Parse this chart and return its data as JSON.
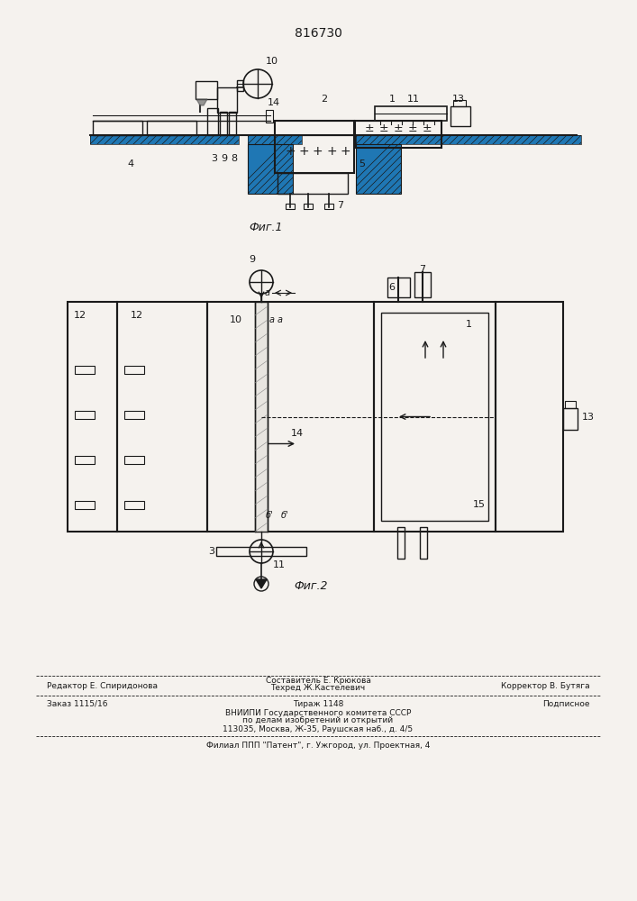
{
  "patent_number": "816730",
  "fig1_caption": "Фиг.1",
  "fig2_caption": "Фиг.2",
  "background_color": "#f5f2ee",
  "line_color": "#1a1a1a",
  "text_color": "#1a1a1a",
  "footer_line1_left": "Редактор Е. Спиридонова",
  "footer_line1_center": "Составитель Е. Крюкова",
  "footer_line1_right": "Корректор В. Бутяга",
  "footer_line2_center": "Техред Ж.Кастелевич",
  "footer_line3_left": "Заказ 1115/16",
  "footer_line3_center": "Тираж 1148",
  "footer_line3_right": "Подписное",
  "footer_line4": "ВНИИПИ Государственного комитета СССР",
  "footer_line5": "по делам изобретений и открытий",
  "footer_line6": "113035, Москва, Ж-35, Раушская наб., д. 4/5",
  "footer_line7": "Филиал ППП \"Патент\", г. Ужгород, ул. Проектная, 4"
}
